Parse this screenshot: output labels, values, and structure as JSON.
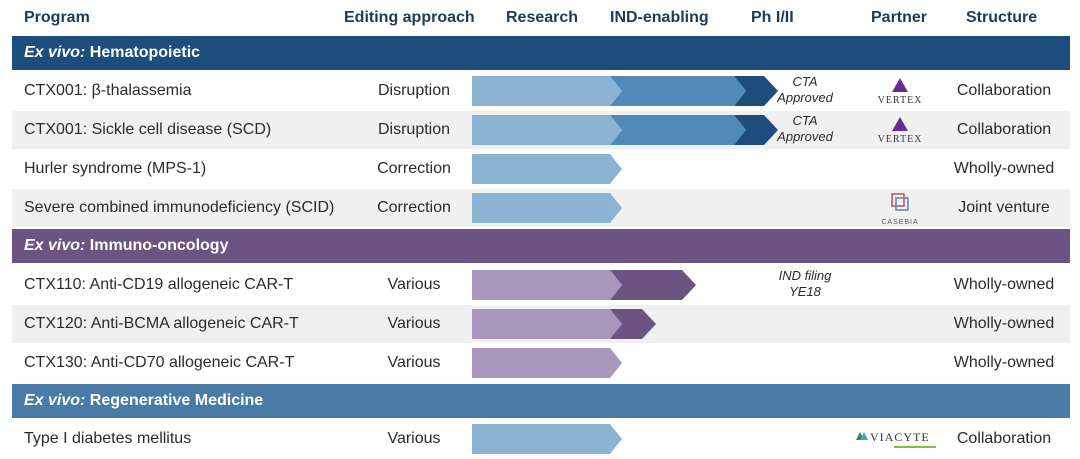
{
  "headers": {
    "program": "Program",
    "editing": "Editing approach",
    "research": "Research",
    "ind": "IND-enabling",
    "ph": "Ph I/II",
    "partner": "Partner",
    "structure": "Structure"
  },
  "colors": {
    "hematopoietic_band": "#1d4e7b",
    "immuno_band": "#6b5482",
    "regen_band": "#4a7ba6",
    "blue_light": "#8ab4d2",
    "blue_mid": "#4f8ab8",
    "blue_dark": "#1d4e7b",
    "purple_light": "#a896bd",
    "purple_dark": "#6b5482"
  },
  "sections": [
    {
      "prefix": "Ex vivo:",
      "title": " Hematopoietic",
      "rows": [
        {
          "program": "CTX001: β-thalassemia",
          "editing": "Disruption",
          "note": [
            "CTA",
            "Approved"
          ],
          "partner": "VERTEX",
          "structure": "Collaboration",
          "stage": "Ph I/II"
        },
        {
          "program": "CTX001: Sickle cell disease (SCD)",
          "editing": "Disruption",
          "note": [
            "CTA",
            "Approved"
          ],
          "partner": "VERTEX",
          "structure": "Collaboration",
          "stage": "Ph I/II"
        },
        {
          "program": "Hurler syndrome (MPS-1)",
          "editing": "Correction",
          "structure": "Wholly-owned",
          "stage": "Research"
        },
        {
          "program": "Severe combined immunodeficiency (SCID)",
          "editing": "Correction",
          "partner": "CASEBIA",
          "structure": "Joint venture",
          "stage": "Research"
        }
      ]
    },
    {
      "prefix": "Ex vivo:",
      "title": " Immuno-oncology",
      "rows": [
        {
          "program": "CTX110: Anti-CD19 allogeneic CAR-T",
          "editing": "Various",
          "note": [
            "IND filing",
            "YE18"
          ],
          "structure": "Wholly-owned",
          "stage": "IND-enabling"
        },
        {
          "program": "CTX120: Anti-BCMA allogeneic CAR-T",
          "editing": "Various",
          "structure": "Wholly-owned",
          "stage": "IND-enabling"
        },
        {
          "program": "CTX130: Anti-CD70 allogeneic CAR-T",
          "editing": "Various",
          "structure": "Wholly-owned",
          "stage": "Research"
        }
      ]
    },
    {
      "prefix": "Ex vivo:",
      "title": " Regenerative Medicine",
      "rows": [
        {
          "program": "Type I diabetes mellitus",
          "editing": "Various",
          "partner": "VIACYTE",
          "structure": "Collaboration",
          "stage": "Research"
        }
      ]
    }
  ]
}
